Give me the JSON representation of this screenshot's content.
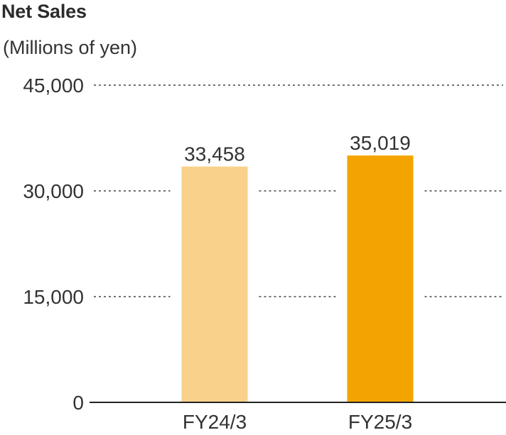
{
  "chart_data": {
    "type": "bar",
    "title": "Net Sales",
    "ylabel": "(Millions of yen)",
    "xlabel": "",
    "categories": [
      "FY24/3",
      "FY25/3"
    ],
    "values": [
      33458,
      35019
    ],
    "value_labels": [
      "33,458",
      "35,019"
    ],
    "bar_colors": [
      "#f9d18b",
      "#f4a400"
    ],
    "ylim": [
      0,
      45000
    ],
    "yticks": [
      0,
      15000,
      30000,
      45000
    ],
    "ytick_labels": [
      "0",
      "15,000",
      "30,000",
      "45,000"
    ],
    "grid": "horizontal-dotted",
    "legend": "none"
  },
  "colors": {
    "text": "#333333",
    "axis": "#222222",
    "grid": "#444444"
  }
}
